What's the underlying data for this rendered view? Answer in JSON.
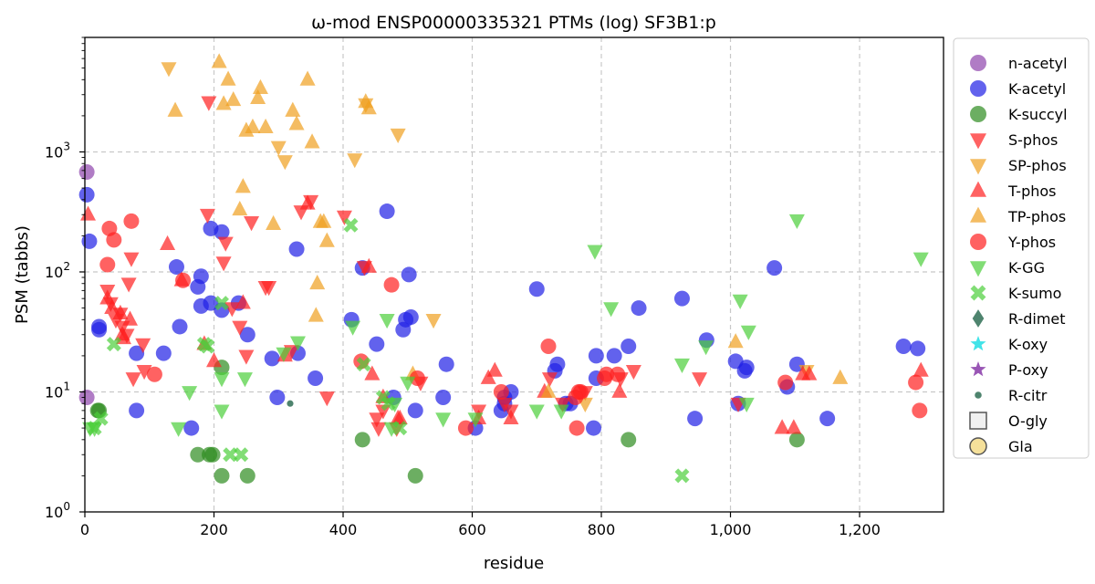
{
  "chart_data": {
    "type": "scatter",
    "title": "ω-mod ENSP00000335321 PTMs (log) SF3B1:p",
    "xlabel": "residue",
    "ylabel": "PSM (tabbs)",
    "xlim": [
      0,
      1330
    ],
    "ylim": [
      1,
      9000
    ],
    "yscale": "log",
    "grid": true,
    "legend_position": "right",
    "x_ticks": [
      {
        "value": 0,
        "label": "0"
      },
      {
        "value": 200,
        "label": "200"
      },
      {
        "value": 400,
        "label": "400"
      },
      {
        "value": 600,
        "label": "600"
      },
      {
        "value": 800,
        "label": "800"
      },
      {
        "value": 1000,
        "label": "1,000"
      },
      {
        "value": 1200,
        "label": "1,200"
      }
    ],
    "y_ticks": [
      {
        "value": 1,
        "label": "10^0"
      },
      {
        "value": 10,
        "label": "10^1"
      },
      {
        "value": 100,
        "label": "10^2"
      },
      {
        "value": 1000,
        "label": "10^3"
      }
    ],
    "series": [
      {
        "name": "n-acetyl",
        "marker": "circle",
        "color": "#8e44ad",
        "points": [
          [
            3,
            680
          ],
          [
            3,
            9
          ]
        ]
      },
      {
        "name": "K-acetyl",
        "marker": "circle",
        "color": "#1f1fe6",
        "points": [
          [
            3,
            440
          ],
          [
            7,
            180
          ],
          [
            22,
            33
          ],
          [
            22,
            35
          ],
          [
            80,
            7
          ],
          [
            80,
            21
          ],
          [
            122,
            21
          ],
          [
            142,
            110
          ],
          [
            147,
            35
          ],
          [
            165,
            5
          ],
          [
            175,
            75
          ],
          [
            180,
            52
          ],
          [
            180,
            92
          ],
          [
            195,
            55
          ],
          [
            195,
            230
          ],
          [
            212,
            215
          ],
          [
            212,
            48
          ],
          [
            238,
            55
          ],
          [
            252,
            30
          ],
          [
            290,
            19
          ],
          [
            298,
            9
          ],
          [
            328,
            155
          ],
          [
            330,
            21
          ],
          [
            357,
            13
          ],
          [
            413,
            40
          ],
          [
            430,
            108
          ],
          [
            452,
            25
          ],
          [
            468,
            320
          ],
          [
            478,
            9
          ],
          [
            493,
            33
          ],
          [
            497,
            40
          ],
          [
            502,
            95
          ],
          [
            505,
            42
          ],
          [
            512,
            7
          ],
          [
            555,
            9
          ],
          [
            560,
            17
          ],
          [
            605,
            5
          ],
          [
            645,
            7
          ],
          [
            650,
            9
          ],
          [
            650,
            8
          ],
          [
            660,
            10
          ],
          [
            700,
            72
          ],
          [
            728,
            15
          ],
          [
            732,
            17
          ],
          [
            745,
            8
          ],
          [
            752,
            8
          ],
          [
            788,
            5
          ],
          [
            792,
            20
          ],
          [
            792,
            13
          ],
          [
            820,
            20
          ],
          [
            842,
            24
          ],
          [
            858,
            50
          ],
          [
            925,
            60
          ],
          [
            945,
            6
          ],
          [
            963,
            27
          ],
          [
            1008,
            18
          ],
          [
            1012,
            8
          ],
          [
            1022,
            15
          ],
          [
            1025,
            16
          ],
          [
            1068,
            108
          ],
          [
            1088,
            11
          ],
          [
            1103,
            17
          ],
          [
            1150,
            6
          ],
          [
            1268,
            24
          ],
          [
            1290,
            23
          ]
        ]
      },
      {
        "name": "K-succyl",
        "marker": "circle",
        "color": "#2e8b1f",
        "points": [
          [
            20,
            7
          ],
          [
            22,
            7
          ],
          [
            175,
            3
          ],
          [
            193,
            3
          ],
          [
            198,
            3
          ],
          [
            212,
            2
          ],
          [
            212,
            16
          ],
          [
            252,
            2
          ],
          [
            430,
            4
          ],
          [
            512,
            2
          ],
          [
            842,
            4
          ],
          [
            1103,
            4
          ]
        ]
      },
      {
        "name": "S-phos",
        "marker": "triangle-down",
        "color": "#ff1f1f",
        "points": [
          [
            35,
            70
          ],
          [
            40,
            55
          ],
          [
            48,
            40
          ],
          [
            55,
            45
          ],
          [
            58,
            35
          ],
          [
            65,
            30
          ],
          [
            68,
            80
          ],
          [
            72,
            130
          ],
          [
            75,
            13
          ],
          [
            90,
            25
          ],
          [
            92,
            15
          ],
          [
            190,
            300
          ],
          [
            192,
            2600
          ],
          [
            215,
            120
          ],
          [
            218,
            175
          ],
          [
            228,
            50
          ],
          [
            240,
            35
          ],
          [
            250,
            20
          ],
          [
            258,
            260
          ],
          [
            280,
            75
          ],
          [
            285,
            75
          ],
          [
            320,
            22
          ],
          [
            335,
            320
          ],
          [
            350,
            390
          ],
          [
            375,
            9
          ],
          [
            402,
            290
          ],
          [
            433,
            110
          ],
          [
            452,
            6
          ],
          [
            455,
            5
          ],
          [
            462,
            7
          ],
          [
            483,
            5
          ],
          [
            520,
            12
          ],
          [
            610,
            7
          ],
          [
            650,
            8
          ],
          [
            660,
            7
          ],
          [
            720,
            13
          ],
          [
            740,
            8
          ],
          [
            775,
            10
          ],
          [
            830,
            13
          ],
          [
            850,
            15
          ],
          [
            952,
            13
          ],
          [
            1012,
            8
          ]
        ]
      },
      {
        "name": "SP-phos",
        "marker": "triangle-down",
        "color": "#f0a020",
        "points": [
          [
            130,
            5000
          ],
          [
            300,
            1100
          ],
          [
            310,
            840
          ],
          [
            418,
            870
          ],
          [
            435,
            2500
          ],
          [
            485,
            1400
          ],
          [
            540,
            40
          ],
          [
            775,
            8
          ],
          [
            1118,
            15
          ]
        ]
      },
      {
        "name": "T-phos",
        "marker": "triangle-up",
        "color": "#ff1f1f",
        "points": [
          [
            5,
            300
          ],
          [
            35,
            60
          ],
          [
            42,
            50
          ],
          [
            55,
            45
          ],
          [
            58,
            30
          ],
          [
            60,
            28
          ],
          [
            70,
            40
          ],
          [
            128,
            170
          ],
          [
            150,
            85
          ],
          [
            185,
            25
          ],
          [
            200,
            18
          ],
          [
            245,
            55
          ],
          [
            310,
            20
          ],
          [
            345,
            370
          ],
          [
            440,
            110
          ],
          [
            445,
            14
          ],
          [
            462,
            9
          ],
          [
            485,
            6
          ],
          [
            488,
            6
          ],
          [
            610,
            6
          ],
          [
            625,
            13
          ],
          [
            635,
            15
          ],
          [
            660,
            6
          ],
          [
            712,
            10
          ],
          [
            828,
            10
          ],
          [
            1080,
            5
          ],
          [
            1098,
            5
          ],
          [
            1112,
            14
          ],
          [
            1122,
            14
          ],
          [
            1295,
            15
          ]
        ]
      },
      {
        "name": "TP-phos",
        "marker": "triangle-up",
        "color": "#f0a020",
        "points": [
          [
            140,
            2200
          ],
          [
            208,
            5600
          ],
          [
            215,
            2500
          ],
          [
            222,
            4000
          ],
          [
            230,
            2700
          ],
          [
            240,
            330
          ],
          [
            245,
            510
          ],
          [
            250,
            1500
          ],
          [
            260,
            1600
          ],
          [
            268,
            2800
          ],
          [
            272,
            3400
          ],
          [
            280,
            1600
          ],
          [
            292,
            250
          ],
          [
            322,
            2200
          ],
          [
            328,
            1700
          ],
          [
            345,
            4000
          ],
          [
            352,
            1200
          ],
          [
            360,
            80
          ],
          [
            358,
            43
          ],
          [
            365,
            260
          ],
          [
            370,
            260
          ],
          [
            375,
            180
          ],
          [
            435,
            2600
          ],
          [
            440,
            2300
          ],
          [
            508,
            14
          ],
          [
            718,
            10
          ],
          [
            1008,
            26
          ],
          [
            1170,
            13
          ]
        ]
      },
      {
        "name": "Y-phos",
        "marker": "circle",
        "color": "#ff1f1f",
        "points": [
          [
            35,
            115
          ],
          [
            38,
            230
          ],
          [
            45,
            185
          ],
          [
            72,
            265
          ],
          [
            108,
            14
          ],
          [
            152,
            85
          ],
          [
            428,
            18
          ],
          [
            475,
            78
          ],
          [
            515,
            13
          ],
          [
            590,
            5
          ],
          [
            645,
            10
          ],
          [
            718,
            24
          ],
          [
            760,
            9
          ],
          [
            762,
            5
          ],
          [
            765,
            10
          ],
          [
            768,
            10
          ],
          [
            805,
            13
          ],
          [
            808,
            14
          ],
          [
            825,
            14
          ],
          [
            1085,
            12
          ],
          [
            1287,
            12
          ],
          [
            1293,
            7
          ]
        ]
      },
      {
        "name": "K-GG",
        "marker": "triangle-down",
        "color": "#4ccf3a",
        "points": [
          [
            8,
            5
          ],
          [
            15,
            5
          ],
          [
            145,
            5
          ],
          [
            162,
            10
          ],
          [
            212,
            13
          ],
          [
            212,
            7
          ],
          [
            248,
            13
          ],
          [
            308,
            21
          ],
          [
            330,
            26
          ],
          [
            415,
            35
          ],
          [
            468,
            40
          ],
          [
            475,
            5
          ],
          [
            480,
            8
          ],
          [
            500,
            12
          ],
          [
            555,
            6
          ],
          [
            605,
            6
          ],
          [
            700,
            7
          ],
          [
            738,
            7
          ],
          [
            790,
            150
          ],
          [
            815,
            50
          ],
          [
            925,
            17
          ],
          [
            962,
            24
          ],
          [
            1015,
            58
          ],
          [
            1028,
            32
          ],
          [
            1025,
            8
          ],
          [
            1103,
            270
          ],
          [
            1295,
            130
          ]
        ]
      },
      {
        "name": "K-sumo",
        "marker": "x",
        "color": "#4ccf3a",
        "points": [
          [
            15,
            5
          ],
          [
            25,
            6
          ],
          [
            45,
            25
          ],
          [
            185,
            25
          ],
          [
            190,
            24
          ],
          [
            212,
            55
          ],
          [
            225,
            3
          ],
          [
            242,
            3
          ],
          [
            412,
            245
          ],
          [
            432,
            17
          ],
          [
            462,
            9
          ],
          [
            470,
            8
          ],
          [
            488,
            5
          ],
          [
            925,
            2
          ]
        ]
      },
      {
        "name": "R-dimet",
        "marker": "diamond",
        "color": "#2f6e55",
        "points": []
      },
      {
        "name": "K-oxy",
        "marker": "star",
        "color": "#2ee0e6",
        "points": []
      },
      {
        "name": "P-oxy",
        "marker": "star",
        "color": "#8e44ad",
        "points": []
      },
      {
        "name": "R-citr",
        "marker": "dot",
        "color": "#2f6e55",
        "points": [
          [
            318,
            8
          ]
        ]
      },
      {
        "name": "O-gly",
        "marker": "square-open",
        "color": "#555555",
        "points": []
      },
      {
        "name": "Gla",
        "marker": "circle-open",
        "color": "#f5e09a",
        "points": []
      }
    ]
  }
}
